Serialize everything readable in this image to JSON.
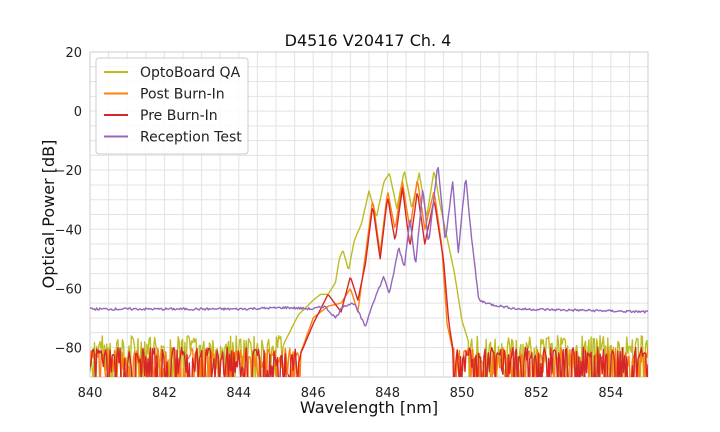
{
  "chart_data": {
    "type": "line",
    "title": "D4516 V20417 Ch. 4",
    "xlabel": "Wavelength [nm]",
    "ylabel": "Optical Power [dB]",
    "xlim": [
      840,
      855
    ],
    "ylim": [
      -90,
      20
    ],
    "xticks": [
      840,
      842,
      844,
      846,
      848,
      850,
      852,
      854
    ],
    "yticks": [
      20,
      0,
      -20,
      -40,
      -60,
      -80
    ],
    "grid": true,
    "legend_position": "top-left",
    "series": [
      {
        "name": "OptoBoard QA",
        "color": "#bcbd22",
        "noise_floor": -80,
        "points": [
          [
            840,
            -80
          ],
          [
            845.2,
            -79
          ],
          [
            845.6,
            -69
          ],
          [
            846.0,
            -64
          ],
          [
            846.2,
            -62
          ],
          [
            846.4,
            -62
          ],
          [
            846.6,
            -58
          ],
          [
            846.7,
            -50
          ],
          [
            846.8,
            -47
          ],
          [
            846.95,
            -54
          ],
          [
            847.1,
            -44
          ],
          [
            847.3,
            -38
          ],
          [
            847.5,
            -27
          ],
          [
            847.7,
            -36
          ],
          [
            847.9,
            -24
          ],
          [
            848.05,
            -21
          ],
          [
            848.25,
            -33
          ],
          [
            848.45,
            -20
          ],
          [
            848.65,
            -33
          ],
          [
            848.85,
            -21
          ],
          [
            849.05,
            -36
          ],
          [
            849.25,
            -20
          ],
          [
            849.4,
            -31
          ],
          [
            849.6,
            -43
          ],
          [
            849.8,
            -55
          ],
          [
            850.0,
            -71
          ],
          [
            850.2,
            -79
          ],
          [
            855,
            -80
          ]
        ]
      },
      {
        "name": "Post Burn-In",
        "color": "#ff7f0e",
        "noise_floor": -84,
        "points": [
          [
            840,
            -84
          ],
          [
            845.6,
            -84
          ],
          [
            846.0,
            -70
          ],
          [
            846.4,
            -66
          ],
          [
            846.75,
            -65
          ],
          [
            847.0,
            -60
          ],
          [
            847.2,
            -68
          ],
          [
            847.4,
            -49
          ],
          [
            847.6,
            -30
          ],
          [
            847.8,
            -48
          ],
          [
            848.0,
            -27
          ],
          [
            848.2,
            -40
          ],
          [
            848.4,
            -24
          ],
          [
            848.6,
            -40
          ],
          [
            848.8,
            -23
          ],
          [
            849.0,
            -40
          ],
          [
            849.25,
            -27
          ],
          [
            849.45,
            -45
          ],
          [
            849.6,
            -72
          ],
          [
            849.8,
            -84
          ],
          [
            855,
            -84
          ]
        ]
      },
      {
        "name": "Pre Burn-In",
        "color": "#d62728",
        "noise_floor": -84,
        "points": [
          [
            840,
            -84
          ],
          [
            845.6,
            -84
          ],
          [
            846.0,
            -72
          ],
          [
            846.4,
            -62
          ],
          [
            846.75,
            -68
          ],
          [
            847.0,
            -56
          ],
          [
            847.2,
            -64
          ],
          [
            847.4,
            -52
          ],
          [
            847.6,
            -32
          ],
          [
            847.8,
            -50
          ],
          [
            848.0,
            -29
          ],
          [
            848.2,
            -44
          ],
          [
            848.4,
            -26
          ],
          [
            848.6,
            -46
          ],
          [
            848.8,
            -27
          ],
          [
            849.0,
            -45
          ],
          [
            849.25,
            -30
          ],
          [
            849.5,
            -50
          ],
          [
            849.65,
            -72
          ],
          [
            849.8,
            -84
          ],
          [
            855,
            -84
          ]
        ]
      },
      {
        "name": "Reception Test",
        "color": "#9467bd",
        "points": [
          [
            840,
            -67
          ],
          [
            844,
            -67
          ],
          [
            845.3,
            -66.5
          ],
          [
            846.0,
            -67
          ],
          [
            846.3,
            -66
          ],
          [
            846.6,
            -70
          ],
          [
            846.8,
            -66
          ],
          [
            847.1,
            -65
          ],
          [
            847.4,
            -73
          ],
          [
            847.6,
            -65
          ],
          [
            847.9,
            -56
          ],
          [
            848.05,
            -62
          ],
          [
            848.3,
            -46
          ],
          [
            848.45,
            -53
          ],
          [
            848.6,
            -36
          ],
          [
            848.75,
            -52
          ],
          [
            848.95,
            -26
          ],
          [
            849.1,
            -45
          ],
          [
            849.35,
            -18
          ],
          [
            849.55,
            -44
          ],
          [
            849.75,
            -24
          ],
          [
            849.9,
            -48
          ],
          [
            850.1,
            -22
          ],
          [
            850.25,
            -42
          ],
          [
            850.45,
            -64
          ],
          [
            850.8,
            -65.5
          ],
          [
            851.5,
            -67
          ],
          [
            853.5,
            -67.5
          ],
          [
            855,
            -68
          ]
        ]
      }
    ]
  }
}
